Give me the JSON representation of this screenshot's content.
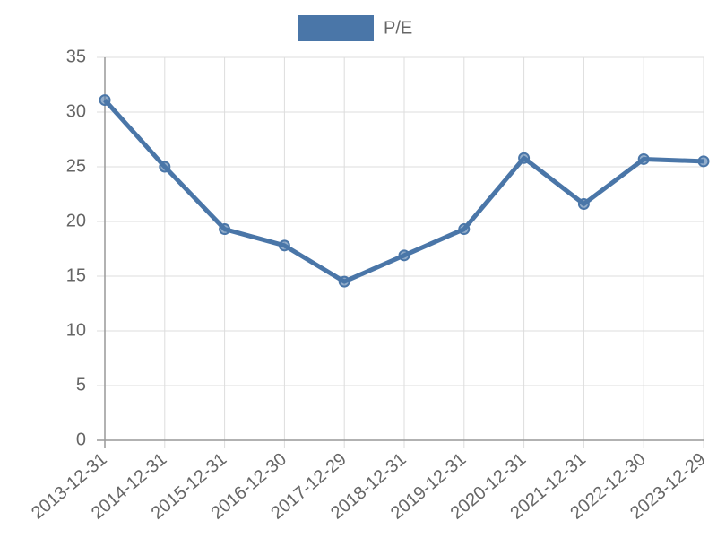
{
  "chart_data": {
    "type": "line",
    "categories": [
      "2013-12-31",
      "2014-12-31",
      "2015-12-31",
      "2016-12-30",
      "2017-12-29",
      "2018-12-31",
      "2019-12-31",
      "2020-12-31",
      "2021-12-31",
      "2022-12-30",
      "2023-12-29"
    ],
    "series": [
      {
        "name": "P/E",
        "color": "#4a76a8",
        "values": [
          31.1,
          25.0,
          19.3,
          17.8,
          14.5,
          16.9,
          19.3,
          25.8,
          21.6,
          25.7,
          25.5
        ]
      }
    ],
    "ylim": [
      0,
      35
    ],
    "yticks": [
      0,
      5,
      10,
      15,
      20,
      25,
      30,
      35
    ],
    "grid": true,
    "legend": "top"
  }
}
